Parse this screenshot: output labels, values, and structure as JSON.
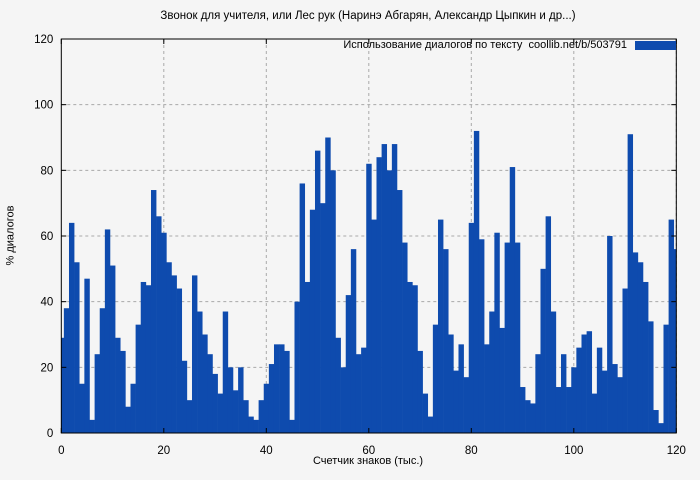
{
  "page": {
    "background": "#f5f5f5"
  },
  "chart_data": {
    "type": "bar",
    "title": "Звонок для учителя, или Лес рук (Наринэ Абгарян, Александр Цыпкин и др...)",
    "xlabel": "Счетчик знаков (тыс.)",
    "ylabel": "% диалогов",
    "legend_label": "Использование диалогов по тексту  coollib.net/b/503791",
    "legend_position": "top-right-inside",
    "grid": true,
    "xlim": [
      0,
      120
    ],
    "ylim": [
      0,
      120
    ],
    "xticks": [
      0,
      20,
      40,
      60,
      80,
      100,
      120
    ],
    "yticks": [
      0,
      20,
      40,
      60,
      80,
      100,
      120
    ],
    "x_start": 0,
    "x_step": 1,
    "values": [
      29,
      38,
      64,
      52,
      15,
      47,
      4,
      24,
      38,
      62,
      51,
      29,
      25,
      8,
      15,
      33,
      46,
      45,
      74,
      66,
      61,
      52,
      48,
      44,
      22,
      10,
      48,
      37,
      30,
      24,
      18,
      12,
      37,
      20,
      13,
      20,
      10,
      5,
      4,
      10,
      15,
      21,
      27,
      27,
      25,
      4,
      40,
      76,
      46,
      68,
      86,
      70,
      90,
      80,
      29,
      20,
      42,
      56,
      24,
      26,
      82,
      65,
      84,
      88,
      80,
      88,
      74,
      58,
      46,
      45,
      25,
      12,
      5,
      33,
      65,
      56,
      30,
      19,
      27,
      17,
      64,
      92,
      59,
      27,
      37,
      61,
      32,
      58,
      81,
      58,
      14,
      10,
      9,
      24,
      50,
      66,
      37,
      14,
      24,
      14,
      20,
      26,
      30,
      31,
      12,
      26,
      19,
      60,
      21,
      17,
      44,
      91,
      55,
      52,
      46,
      34,
      7,
      3,
      33,
      65,
      56
    ],
    "bar_color": "#0e4bae",
    "grid_color": "#a9a9a9",
    "axis_color": "#000000",
    "tick_label_color": "#000000",
    "background": "#f5f5f5"
  }
}
